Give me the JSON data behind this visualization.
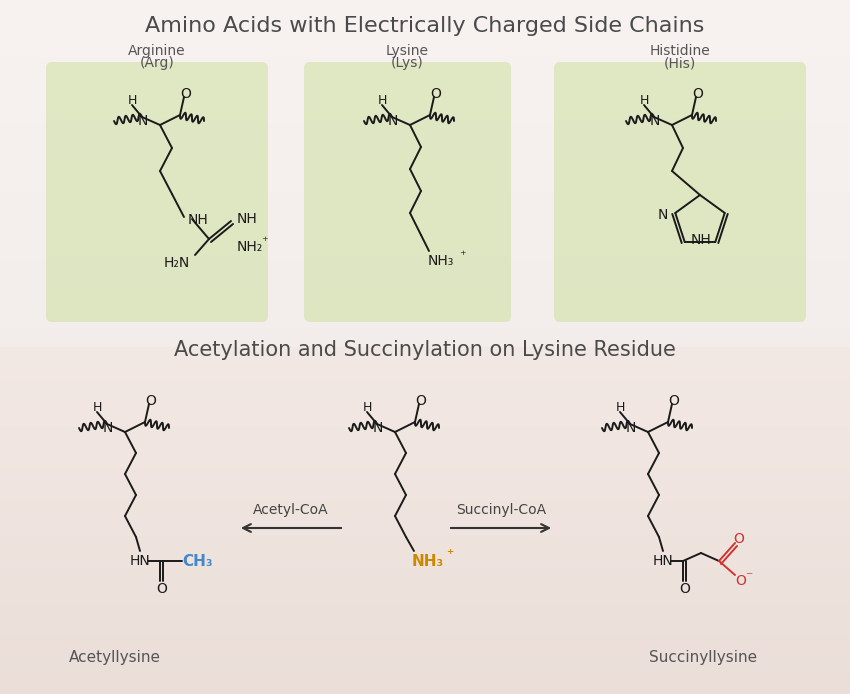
{
  "title1": "Amino Acids with Electrically Charged Side Chains",
  "title2": "Acetylation and Succinylation on Lysine Residue",
  "green_box_color": "#c8dba8",
  "label_arginine_line1": "Arginine",
  "label_arginine_line2": "(Arg)",
  "label_lysine_line1": "Lysine",
  "label_lysine_line2": "(Lys)",
  "label_histidine_line1": "Histidine",
  "label_histidine_line2": "(His)",
  "label_acetyllysine": "Acetyllysine",
  "label_succinyllysine": "Succinyllysine",
  "arrow_acetyl": "Acetyl-CoA",
  "arrow_succinyl": "Succinyl-CoA",
  "ch3_color": "#4488cc",
  "nh3_color": "#cc8800",
  "red_color": "#cc3333",
  "line_color": "#1a1a1a",
  "text_color": "#555555",
  "title_fontsize": 16,
  "label_fontsize": 10,
  "figsize": [
    8.5,
    6.94
  ],
  "dpi": 100
}
